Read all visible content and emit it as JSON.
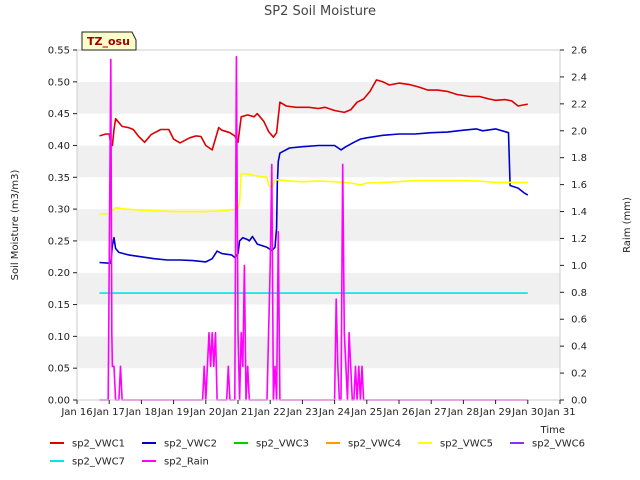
{
  "chart_data": {
    "type": "line",
    "title": "SP2 Soil Moisture",
    "xlabel": "Time",
    "ylabel": "Soil Moisture (m3/m3)",
    "y2label": "Raim (mm)",
    "tz_label": "TZ_osu",
    "x_ticks": [
      "Jan 16",
      "Jan 17",
      "Jan 18",
      "Jan 19",
      "Jan 20",
      "Jan 21",
      "Jan 22",
      "Jan 23",
      "Jan 24",
      "Jan 25",
      "Jan 26",
      "Jan 27",
      "Jan 28",
      "Jan 29",
      "Jan 30",
      "Jan 31"
    ],
    "xlim": [
      16,
      31
    ],
    "ylim": [
      0,
      0.55
    ],
    "y_ticks": [
      "0.00",
      "0.05",
      "0.10",
      "0.15",
      "0.20",
      "0.25",
      "0.30",
      "0.35",
      "0.40",
      "0.45",
      "0.50",
      "0.55"
    ],
    "y2lim": [
      0,
      2.6
    ],
    "y2_ticks": [
      "0.0",
      "0.2",
      "0.4",
      "0.6",
      "0.8",
      "1.0",
      "1.2",
      "1.4",
      "1.6",
      "1.8",
      "2.0",
      "2.2",
      "2.4",
      "2.6"
    ],
    "grid": "horizontal bands",
    "legend_position": "bottom",
    "series": [
      {
        "name": "sp2_VWC1",
        "color": "#dd0000",
        "axis": "left",
        "x": [
          16.7,
          16.9,
          17.0,
          17.05,
          17.1,
          17.15,
          17.2,
          17.4,
          17.6,
          17.75,
          17.9,
          18.1,
          18.3,
          18.6,
          18.85,
          19.0,
          19.2,
          19.5,
          19.7,
          19.85,
          20.0,
          20.2,
          20.4,
          20.5,
          20.75,
          20.9,
          21.0,
          21.1,
          21.3,
          21.5,
          21.6,
          21.8,
          21.95,
          22.1,
          22.2,
          22.3,
          22.5,
          22.8,
          23.2,
          23.5,
          23.7,
          24.0,
          24.3,
          24.5,
          24.7,
          24.9,
          25.1,
          25.3,
          25.5,
          25.7,
          26.0,
          26.3,
          26.6,
          26.9,
          27.2,
          27.5,
          27.8,
          28.2,
          28.5,
          28.8,
          29.0,
          29.3,
          29.5,
          29.7,
          30.0
        ],
        "values": [
          0.415,
          0.418,
          0.418,
          0.402,
          0.4,
          0.425,
          0.442,
          0.43,
          0.428,
          0.425,
          0.415,
          0.405,
          0.417,
          0.425,
          0.425,
          0.41,
          0.404,
          0.412,
          0.415,
          0.414,
          0.4,
          0.393,
          0.428,
          0.424,
          0.42,
          0.415,
          0.405,
          0.445,
          0.448,
          0.445,
          0.45,
          0.438,
          0.422,
          0.413,
          0.42,
          0.468,
          0.462,
          0.46,
          0.46,
          0.458,
          0.46,
          0.455,
          0.452,
          0.456,
          0.468,
          0.473,
          0.485,
          0.503,
          0.5,
          0.495,
          0.498,
          0.496,
          0.492,
          0.487,
          0.487,
          0.485,
          0.48,
          0.477,
          0.477,
          0.473,
          0.471,
          0.472,
          0.47,
          0.462,
          0.465
        ]
      },
      {
        "name": "sp2_VWC2",
        "color": "#0000cc",
        "axis": "left",
        "x": [
          16.7,
          17.0,
          17.05,
          17.1,
          17.15,
          17.2,
          17.3,
          17.6,
          18.0,
          18.4,
          18.8,
          19.2,
          19.6,
          20.0,
          20.2,
          20.35,
          20.5,
          20.8,
          20.9,
          21.0,
          21.05,
          21.15,
          21.3,
          21.35,
          21.45,
          21.6,
          21.9,
          22.05,
          22.15,
          22.2,
          22.22,
          22.25,
          22.3,
          22.6,
          23.0,
          23.5,
          24.0,
          24.2,
          24.35,
          24.6,
          24.8,
          25.0,
          25.5,
          26.0,
          26.5,
          27.0,
          27.5,
          28.0,
          28.4,
          28.6,
          29.0,
          29.4,
          29.45,
          29.7,
          29.9,
          30.0
        ],
        "values": [
          0.216,
          0.215,
          0.215,
          0.243,
          0.255,
          0.238,
          0.232,
          0.228,
          0.225,
          0.222,
          0.22,
          0.22,
          0.219,
          0.217,
          0.222,
          0.234,
          0.23,
          0.228,
          0.224,
          0.23,
          0.25,
          0.255,
          0.252,
          0.25,
          0.257,
          0.245,
          0.24,
          0.235,
          0.24,
          0.27,
          0.34,
          0.375,
          0.388,
          0.396,
          0.398,
          0.4,
          0.4,
          0.393,
          0.398,
          0.405,
          0.41,
          0.412,
          0.416,
          0.418,
          0.418,
          0.42,
          0.421,
          0.424,
          0.426,
          0.423,
          0.426,
          0.42,
          0.337,
          0.333,
          0.325,
          0.322
        ]
      },
      {
        "name": "sp2_VWC3",
        "color": "#00cc00",
        "axis": "left",
        "x": [],
        "values": []
      },
      {
        "name": "sp2_VWC4",
        "color": "#ff9900",
        "axis": "left",
        "x": [],
        "values": []
      },
      {
        "name": "sp2_VWC5",
        "color": "#ffff00",
        "axis": "left",
        "x": [
          16.7,
          17.0,
          17.1,
          17.2,
          17.5,
          17.8,
          18.2,
          18.6,
          19.0,
          19.5,
          20.0,
          20.4,
          20.8,
          21.0,
          21.05,
          21.1,
          21.3,
          21.6,
          21.9,
          21.95,
          22.05,
          22.15,
          22.3,
          22.6,
          23.0,
          23.5,
          24.0,
          24.5,
          24.8,
          25.0,
          25.5,
          26.0,
          26.5,
          27.0,
          27.5,
          28.0,
          28.5,
          29.0,
          29.5,
          30.0
        ],
        "values": [
          0.292,
          0.293,
          0.298,
          0.302,
          0.3,
          0.299,
          0.298,
          0.297,
          0.296,
          0.296,
          0.296,
          0.297,
          0.299,
          0.3,
          0.31,
          0.356,
          0.355,
          0.352,
          0.35,
          0.338,
          0.333,
          0.346,
          0.346,
          0.344,
          0.343,
          0.344,
          0.343,
          0.341,
          0.338,
          0.341,
          0.342,
          0.343,
          0.345,
          0.345,
          0.345,
          0.345,
          0.344,
          0.342,
          0.342,
          0.342
        ]
      },
      {
        "name": "sp2_VWC6",
        "color": "#8833ee",
        "axis": "left",
        "x": [],
        "values": []
      },
      {
        "name": "sp2_VWC7",
        "color": "#00e6e6",
        "axis": "left",
        "x": [
          16.7,
          30.0
        ],
        "values": [
          0.168,
          0.168
        ]
      },
      {
        "name": "sp2_Rain",
        "color": "#ff00ff",
        "axis": "right",
        "x": [
          16.7,
          16.9,
          16.97,
          17.0,
          17.05,
          17.08,
          17.1,
          17.15,
          17.2,
          17.25,
          17.3,
          17.35,
          17.4,
          17.45,
          17.5,
          19.9,
          19.95,
          20.0,
          20.1,
          20.15,
          20.2,
          20.25,
          20.3,
          20.35,
          20.4,
          20.45,
          20.5,
          20.55,
          20.65,
          20.7,
          20.75,
          20.8,
          20.85,
          20.9,
          20.95,
          21.0,
          21.05,
          21.1,
          21.15,
          21.2,
          21.25,
          21.3,
          21.35,
          21.4,
          21.45,
          21.5,
          21.9,
          21.95,
          22.0,
          22.05,
          22.1,
          22.15,
          22.2,
          22.25,
          22.3,
          22.35,
          22.4,
          22.45,
          24.0,
          24.05,
          24.1,
          24.15,
          24.2,
          24.25,
          24.3,
          24.35,
          24.4,
          24.45,
          24.5,
          24.55,
          24.6,
          24.65,
          24.7,
          24.75,
          24.8,
          24.85,
          24.9,
          24.95,
          25.0,
          25.05,
          25.1,
          26.0,
          28.0,
          30.0
        ],
        "values": [
          0.0,
          0.0,
          0.0,
          1.0,
          2.53,
          0.5,
          0.25,
          0.25,
          0.0,
          0.0,
          0.0,
          0.25,
          0.0,
          0.0,
          0.0,
          0.0,
          0.25,
          0.0,
          0.5,
          0.25,
          0.5,
          0.25,
          0.5,
          0.0,
          0.0,
          0.0,
          0.0,
          0.0,
          0.0,
          0.25,
          0.0,
          0.0,
          0.0,
          0.0,
          2.55,
          0.5,
          0.0,
          0.5,
          0.25,
          1.0,
          0.0,
          0.25,
          0.0,
          0.0,
          0.0,
          0.0,
          0.0,
          0.5,
          1.0,
          1.75,
          0.0,
          0.25,
          0.0,
          1.25,
          0.0,
          0.0,
          0.0,
          0.0,
          0.0,
          0.75,
          0.25,
          0.0,
          0.0,
          1.75,
          0.5,
          0.25,
          0.0,
          0.5,
          0.25,
          0.0,
          0.0,
          0.25,
          0.0,
          0.25,
          0.0,
          0.25,
          0.0,
          0.0,
          0.0,
          0.0,
          0.0,
          0.0,
          0.0,
          0.0
        ]
      }
    ]
  }
}
